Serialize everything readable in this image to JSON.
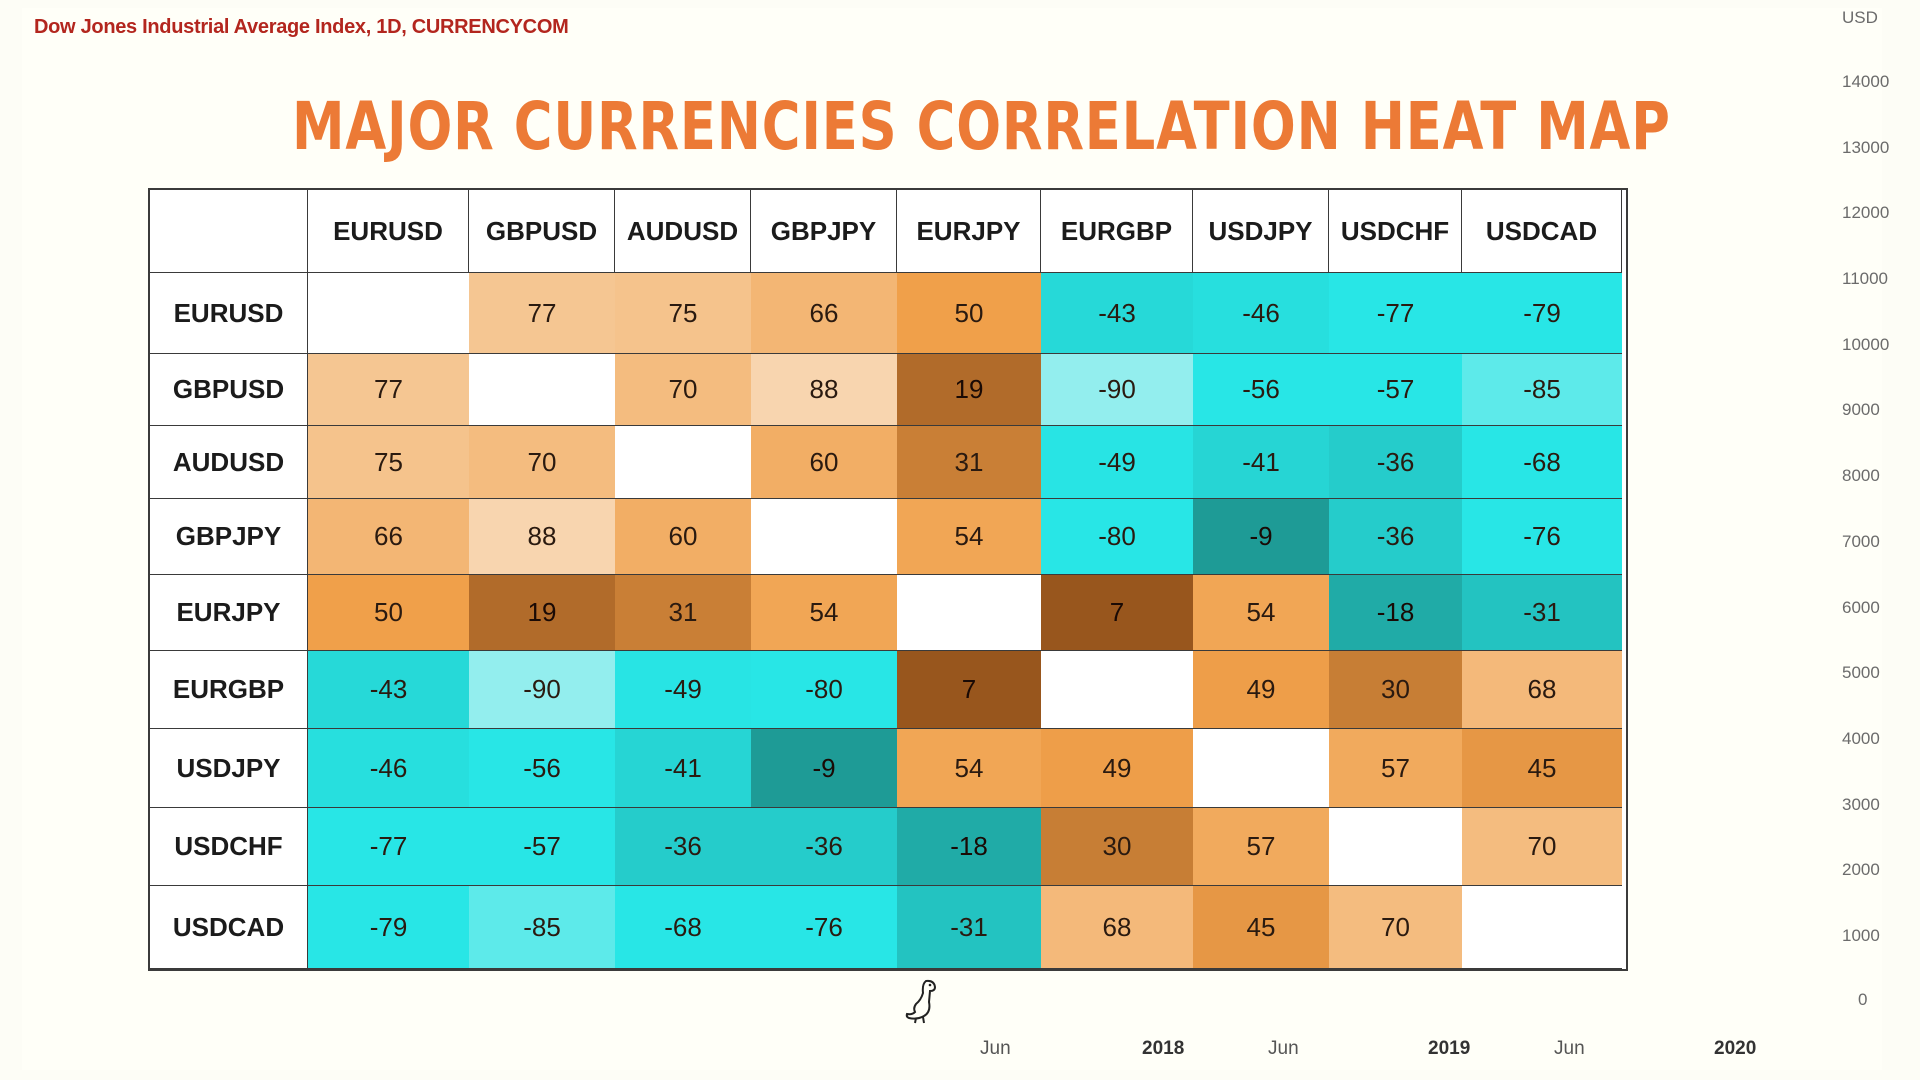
{
  "source_title": "Dow Jones Industrial Average Index, 1D, CURRENCYCOM",
  "title": "MAJOR CURRENCIES CORRELATION HEAT MAP",
  "colors": {
    "positive_light": "#f8d8b4",
    "positive_mid": "#f0a04a",
    "positive_dark": "#8a4a16",
    "negative_light": "#a8f0f0",
    "negative_mid": "#28e6e6",
    "negative_dark": "#1c8a84",
    "diagonal": "#ffffff"
  },
  "chart_data": {
    "type": "heatmap",
    "title": "MAJOR CURRENCIES CORRELATION HEAT MAP",
    "row_labels": [
      "EURUSD",
      "GBPUSD",
      "AUDUSD",
      "GBPJPY",
      "EURJPY",
      "EURGBP",
      "USDJPY",
      "USDCHF",
      "USDCAD"
    ],
    "col_labels": [
      "EURUSD",
      "GBPUSD",
      "AUDUSD",
      "GBPJPY",
      "EURJPY",
      "EURGBP",
      "USDJPY",
      "USDCHF",
      "USDCAD"
    ],
    "values": [
      [
        null,
        77,
        75,
        66,
        50,
        -43,
        -46,
        -77,
        -79
      ],
      [
        77,
        null,
        70,
        88,
        19,
        -90,
        -56,
        -57,
        -85
      ],
      [
        75,
        70,
        null,
        60,
        31,
        -49,
        -41,
        -36,
        -68
      ],
      [
        66,
        88,
        60,
        null,
        54,
        -80,
        -9,
        -36,
        -76
      ],
      [
        50,
        19,
        31,
        54,
        null,
        7,
        54,
        -18,
        -31
      ],
      [
        -43,
        -90,
        -49,
        -80,
        7,
        null,
        49,
        30,
        68
      ],
      [
        -46,
        -56,
        -41,
        -9,
        54,
        49,
        null,
        57,
        45
      ],
      [
        -77,
        -57,
        -36,
        -36,
        -18,
        30,
        57,
        null,
        70
      ],
      [
        -79,
        -85,
        -68,
        -76,
        -31,
        68,
        45,
        70,
        null
      ]
    ]
  },
  "y_axis": {
    "unit": "USD",
    "ticks": [
      "14000",
      "13000",
      "12000",
      "11000",
      "10000",
      "9000",
      "8000",
      "7000",
      "6000",
      "5000",
      "4000",
      "3000",
      "2000",
      "1000",
      "0"
    ]
  },
  "x_axis": {
    "ticks": [
      {
        "label": "Jun",
        "bold": false
      },
      {
        "label": "2018",
        "bold": true
      },
      {
        "label": "Jun",
        "bold": false
      },
      {
        "label": "2019",
        "bold": true
      },
      {
        "label": "Jun",
        "bold": false
      },
      {
        "label": "2020",
        "bold": true
      }
    ]
  },
  "logo_icon": "dinosaur-icon"
}
